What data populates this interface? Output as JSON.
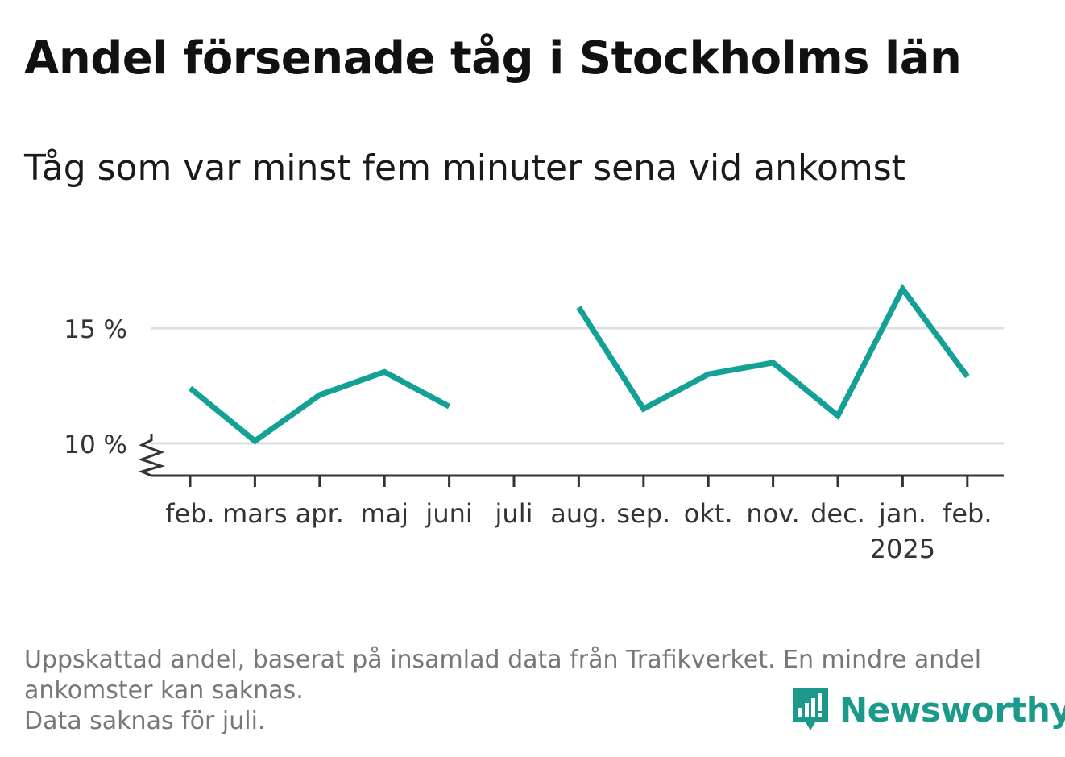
{
  "chart_data": {
    "type": "line",
    "title": "Andel försenade tåg i Stockholms län",
    "subtitle": "Tåg som var minst fem minuter sena vid ankomst",
    "categories": [
      "feb.",
      "mars",
      "apr.",
      "maj",
      "juni",
      "juli",
      "aug.",
      "sep.",
      "okt.",
      "nov.",
      "dec.",
      "jan.",
      "feb."
    ],
    "year_labels": [
      "",
      "",
      "",
      "",
      "",
      "",
      "",
      "",
      "",
      "",
      "",
      "2025",
      ""
    ],
    "series": [
      {
        "values": [
          12.4,
          10.1,
          12.1,
          13.1,
          11.6,
          null,
          15.9,
          11.5,
          13.0,
          13.5,
          11.2,
          16.7,
          12.9
        ]
      }
    ],
    "yticks": [
      {
        "value": 10,
        "label": "10 %"
      },
      {
        "value": 15,
        "label": "15 %"
      }
    ],
    "ylim": [
      8.6,
      17.5
    ],
    "y_axis_break": true,
    "grid": true,
    "line_color": "#13a095"
  },
  "footnote": {
    "line1": "Uppskattad andel, baserat på insamlad data från Trafikverket. En mindre andel",
    "line2": "ankomster kan saknas.",
    "line3": "Data saknas för juli."
  },
  "logo": {
    "text": "Newsworthy",
    "icon": "newsworthy-logo-icon",
    "color": "#1b9a8c"
  }
}
